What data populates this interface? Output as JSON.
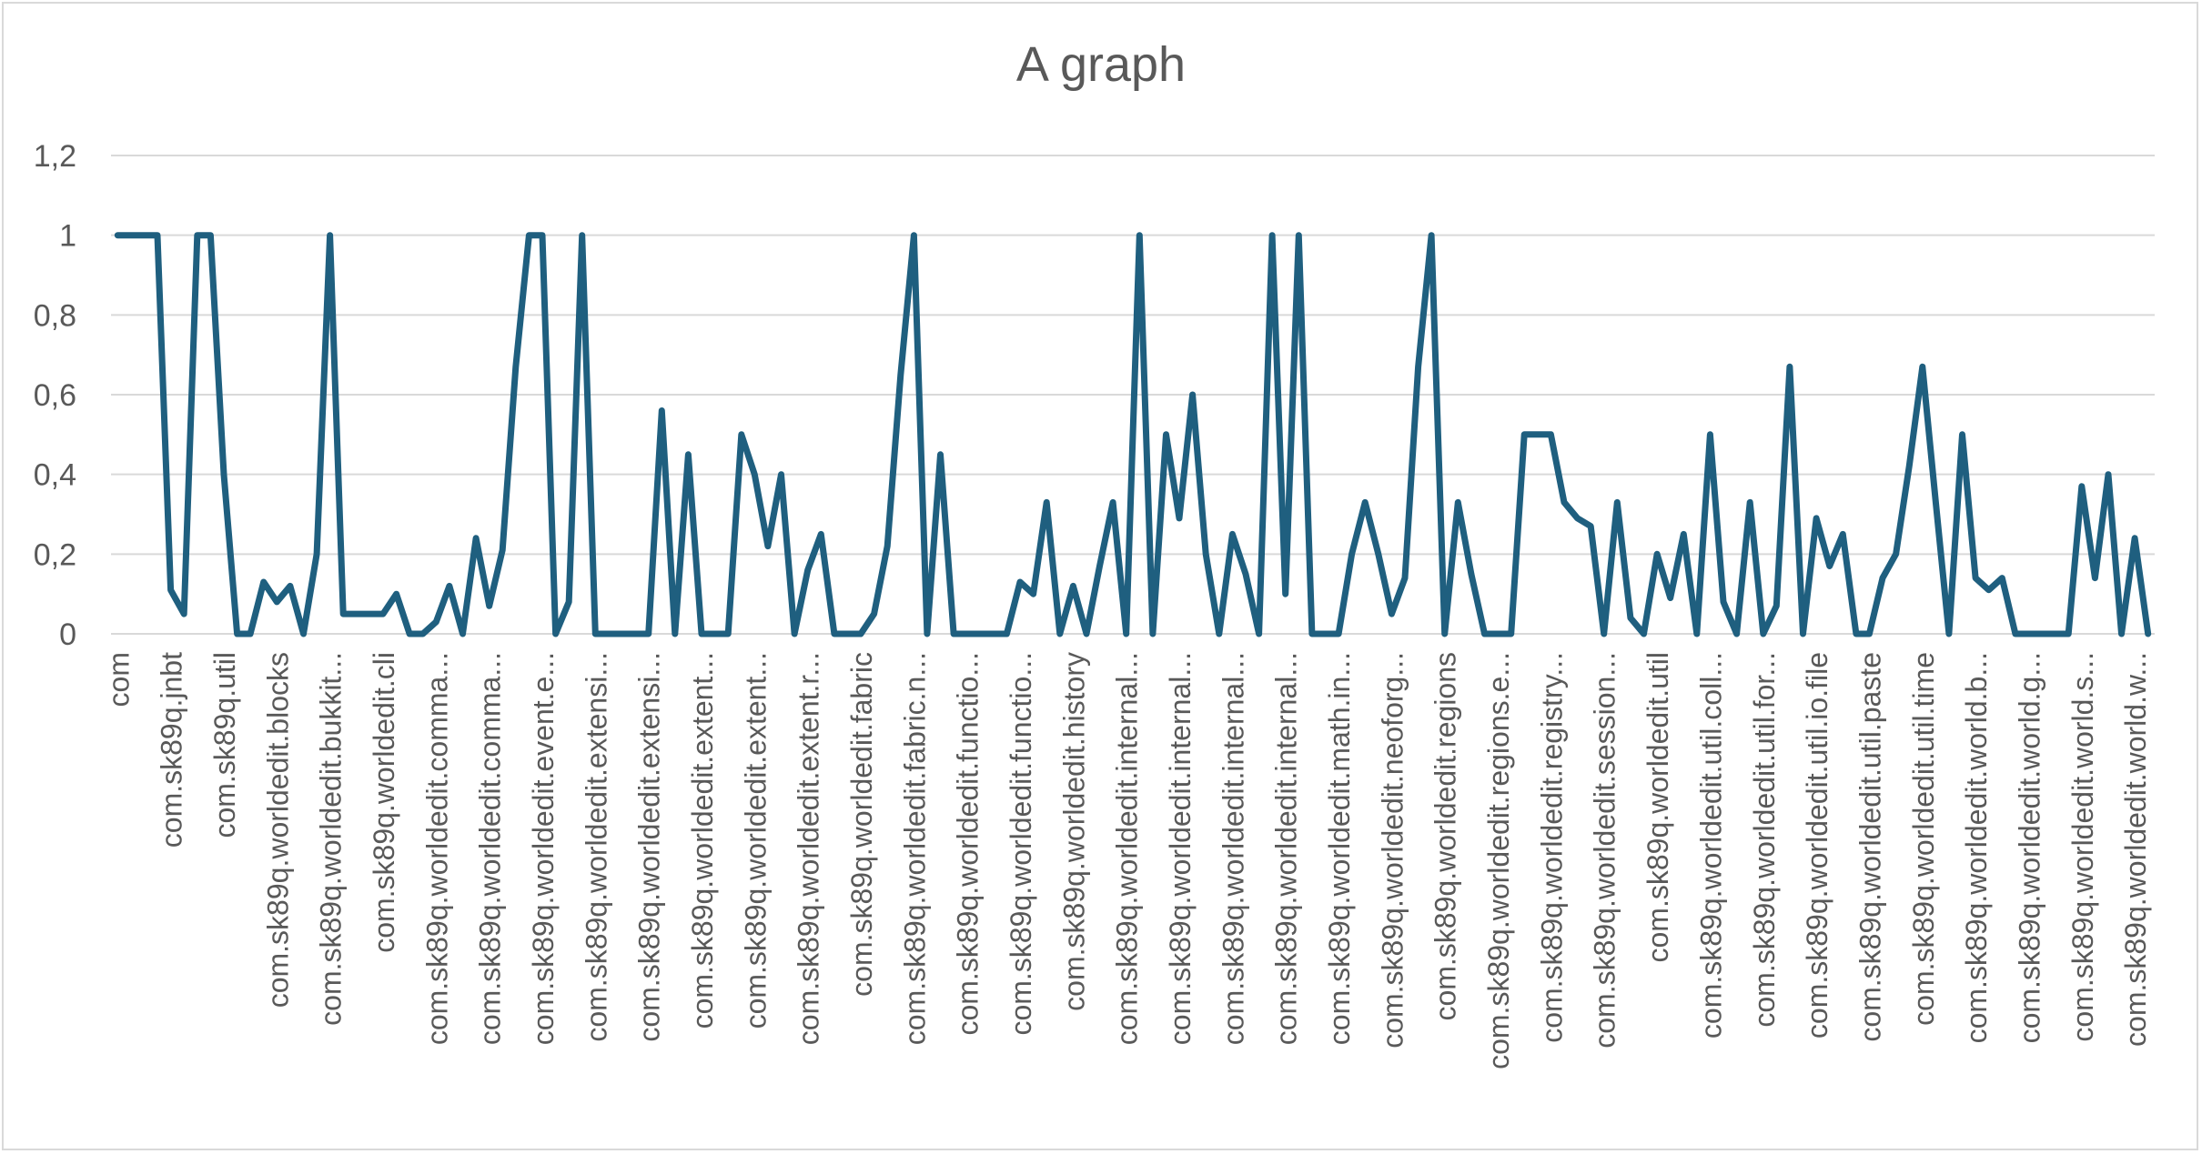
{
  "chart_data": {
    "type": "line",
    "title": "A graph",
    "xlabel": "",
    "ylabel": "",
    "ylim": [
      0,
      1.2
    ],
    "yticks": [
      "0",
      "0,2",
      "0,4",
      "0,6",
      "0,8",
      "1",
      "1,2"
    ],
    "grid": true,
    "legend": "none",
    "series_color": "#1f5f7f",
    "tick_labels": [
      "com",
      "com.sk89q.jnbt",
      "com.sk89q.util",
      "com.sk89q.worldedit.blocks",
      "com.sk89q.worldedit.bukkit...",
      "com.sk89q.worldedit.cli",
      "com.sk89q.worldedit.comma...",
      "com.sk89q.worldedit.comma...",
      "com.sk89q.worldedit.event.e...",
      "com.sk89q.worldedit.extensi...",
      "com.sk89q.worldedit.extensi...",
      "com.sk89q.worldedit.extent...",
      "com.sk89q.worldedit.extent...",
      "com.sk89q.worldedit.extent.r...",
      "com.sk89q.worldedit.fabric",
      "com.sk89q.worldedit.fabric.n...",
      "com.sk89q.worldedit.functio...",
      "com.sk89q.worldedit.functio...",
      "com.sk89q.worldedit.history",
      "com.sk89q.worldedit.internal...",
      "com.sk89q.worldedit.internal...",
      "com.sk89q.worldedit.internal...",
      "com.sk89q.worldedit.internal...",
      "com.sk89q.worldedit.math.in...",
      "com.sk89q.worldedit.neoforg...",
      "com.sk89q.worldedit.regions",
      "com.sk89q.worldedit.regions.e...",
      "com.sk89q.worldedit.registry...",
      "com.sk89q.worldedit.session...",
      "com.sk89q.worldedit.util",
      "com.sk89q.worldedit.util.coll...",
      "com.sk89q.worldedit.util.for...",
      "com.sk89q.worldedit.util.io.file",
      "com.sk89q.worldedit.util.paste",
      "com.sk89q.worldedit.util.time",
      "com.sk89q.worldedit.world.b...",
      "com.sk89q.worldedit.world.g...",
      "com.sk89q.worldedit.world.s...",
      "com.sk89q.worldedit.world.w..."
    ],
    "points_per_label": 4,
    "values": [
      1,
      1,
      1,
      1,
      0.11,
      0.05,
      1,
      1,
      0.4,
      0,
      0,
      0.13,
      0.08,
      0.12,
      0,
      0.2,
      1,
      0.05,
      0.05,
      0.05,
      0.05,
      0.1,
      0,
      0,
      0.03,
      0.12,
      0,
      0.24,
      0.07,
      0.21,
      0.67,
      1,
      1,
      0,
      0.08,
      1,
      0,
      0,
      0,
      0,
      0,
      0.56,
      0,
      0.45,
      0,
      0,
      0,
      0.5,
      0.4,
      0.22,
      0.4,
      0,
      0.16,
      0.25,
      0,
      0,
      0,
      0.05,
      0.22,
      0.65,
      1,
      0,
      0.45,
      0,
      0,
      0,
      0,
      0,
      0.13,
      0.1,
      0.33,
      0,
      0.12,
      0,
      0.17,
      0.33,
      0,
      1,
      0,
      0.5,
      0.29,
      0.6,
      0.2,
      0,
      0.25,
      0.15,
      0,
      1,
      0.1,
      1,
      0,
      0,
      0,
      0.2,
      0.33,
      0.2,
      0.05,
      0.14,
      0.67,
      1,
      0,
      0.33,
      0.15,
      0,
      0,
      0,
      0.5,
      0.5,
      0.5,
      0.33,
      0.29,
      0.27,
      0,
      0.33,
      0.04,
      0,
      0.2,
      0.09,
      0.25,
      0,
      0.5,
      0.08,
      0,
      0.33,
      0,
      0.07,
      0.67,
      0,
      0.29,
      0.17,
      0.25,
      0,
      0,
      0.14,
      0.2,
      0.42,
      0.67,
      0.33,
      0,
      0.5,
      0.14,
      0.11,
      0.14,
      0,
      0,
      0,
      0,
      0,
      0.37,
      0.14,
      0.4,
      0,
      0.24,
      0
    ]
  }
}
